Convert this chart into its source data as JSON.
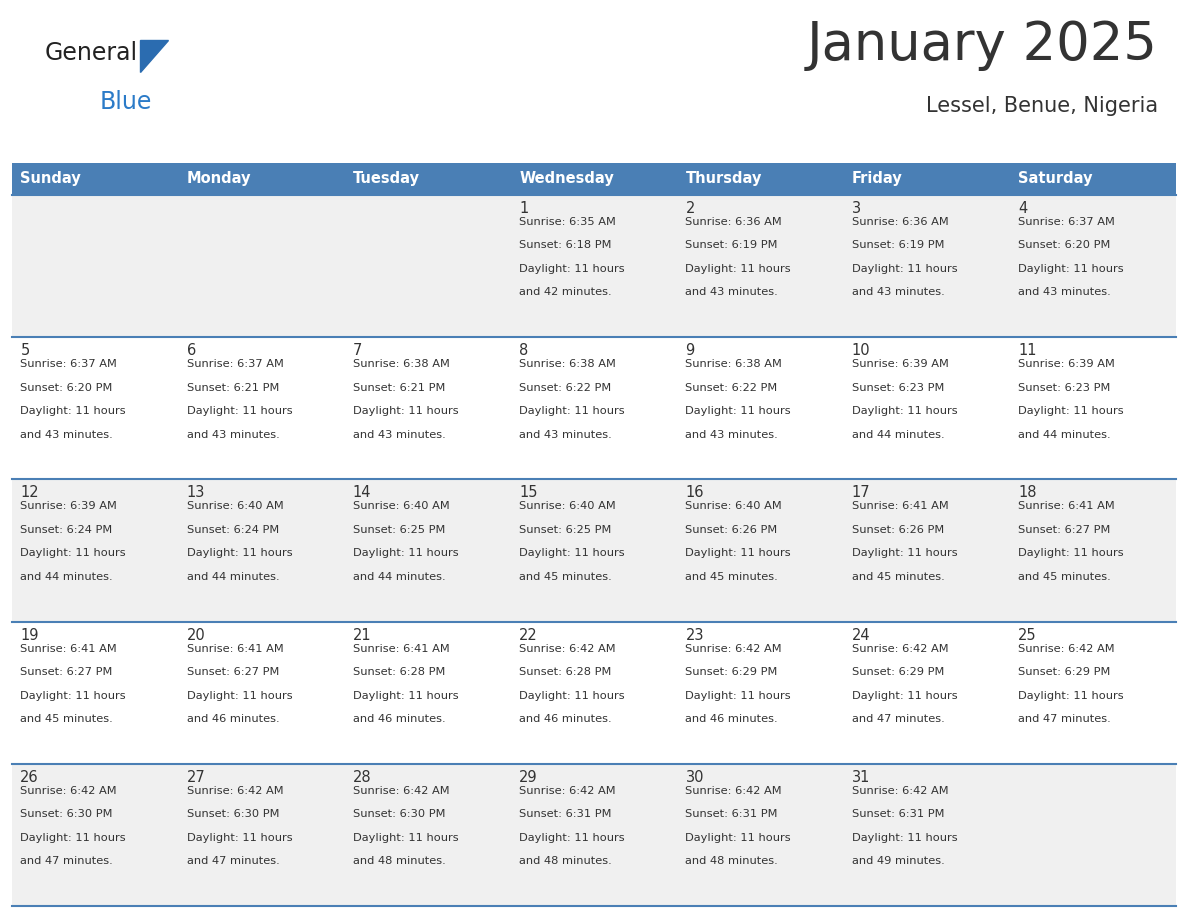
{
  "title": "January 2025",
  "subtitle": "Lessel, Benue, Nigeria",
  "days_of_week": [
    "Sunday",
    "Monday",
    "Tuesday",
    "Wednesday",
    "Thursday",
    "Friday",
    "Saturday"
  ],
  "header_bg": "#4A7FB5",
  "header_text": "#FFFFFF",
  "cell_bg_odd": "#F0F0F0",
  "cell_bg_even": "#FFFFFF",
  "row_line_color": "#4A7FB5",
  "text_color": "#333333",
  "day_number_color": "#333333",
  "logo_triangle_color": "#2B6CB0",
  "general_color": "#222222",
  "blue_color": "#2B7BC8",
  "logo_text_general": "General",
  "logo_text_blue": "Blue",
  "calendar_data": [
    [
      null,
      null,
      null,
      {
        "day": 1,
        "sunrise": "6:35 AM",
        "sunset": "6:18 PM",
        "daylight_min": "42"
      },
      {
        "day": 2,
        "sunrise": "6:36 AM",
        "sunset": "6:19 PM",
        "daylight_min": "43"
      },
      {
        "day": 3,
        "sunrise": "6:36 AM",
        "sunset": "6:19 PM",
        "daylight_min": "43"
      },
      {
        "day": 4,
        "sunrise": "6:37 AM",
        "sunset": "6:20 PM",
        "daylight_min": "43"
      }
    ],
    [
      {
        "day": 5,
        "sunrise": "6:37 AM",
        "sunset": "6:20 PM",
        "daylight_min": "43"
      },
      {
        "day": 6,
        "sunrise": "6:37 AM",
        "sunset": "6:21 PM",
        "daylight_min": "43"
      },
      {
        "day": 7,
        "sunrise": "6:38 AM",
        "sunset": "6:21 PM",
        "daylight_min": "43"
      },
      {
        "day": 8,
        "sunrise": "6:38 AM",
        "sunset": "6:22 PM",
        "daylight_min": "43"
      },
      {
        "day": 9,
        "sunrise": "6:38 AM",
        "sunset": "6:22 PM",
        "daylight_min": "43"
      },
      {
        "day": 10,
        "sunrise": "6:39 AM",
        "sunset": "6:23 PM",
        "daylight_min": "44"
      },
      {
        "day": 11,
        "sunrise": "6:39 AM",
        "sunset": "6:23 PM",
        "daylight_min": "44"
      }
    ],
    [
      {
        "day": 12,
        "sunrise": "6:39 AM",
        "sunset": "6:24 PM",
        "daylight_min": "44"
      },
      {
        "day": 13,
        "sunrise": "6:40 AM",
        "sunset": "6:24 PM",
        "daylight_min": "44"
      },
      {
        "day": 14,
        "sunrise": "6:40 AM",
        "sunset": "6:25 PM",
        "daylight_min": "44"
      },
      {
        "day": 15,
        "sunrise": "6:40 AM",
        "sunset": "6:25 PM",
        "daylight_min": "45"
      },
      {
        "day": 16,
        "sunrise": "6:40 AM",
        "sunset": "6:26 PM",
        "daylight_min": "45"
      },
      {
        "day": 17,
        "sunrise": "6:41 AM",
        "sunset": "6:26 PM",
        "daylight_min": "45"
      },
      {
        "day": 18,
        "sunrise": "6:41 AM",
        "sunset": "6:27 PM",
        "daylight_min": "45"
      }
    ],
    [
      {
        "day": 19,
        "sunrise": "6:41 AM",
        "sunset": "6:27 PM",
        "daylight_min": "45"
      },
      {
        "day": 20,
        "sunrise": "6:41 AM",
        "sunset": "6:27 PM",
        "daylight_min": "46"
      },
      {
        "day": 21,
        "sunrise": "6:41 AM",
        "sunset": "6:28 PM",
        "daylight_min": "46"
      },
      {
        "day": 22,
        "sunrise": "6:42 AM",
        "sunset": "6:28 PM",
        "daylight_min": "46"
      },
      {
        "day": 23,
        "sunrise": "6:42 AM",
        "sunset": "6:29 PM",
        "daylight_min": "46"
      },
      {
        "day": 24,
        "sunrise": "6:42 AM",
        "sunset": "6:29 PM",
        "daylight_min": "47"
      },
      {
        "day": 25,
        "sunrise": "6:42 AM",
        "sunset": "6:29 PM",
        "daylight_min": "47"
      }
    ],
    [
      {
        "day": 26,
        "sunrise": "6:42 AM",
        "sunset": "6:30 PM",
        "daylight_min": "47"
      },
      {
        "day": 27,
        "sunrise": "6:42 AM",
        "sunset": "6:30 PM",
        "daylight_min": "47"
      },
      {
        "day": 28,
        "sunrise": "6:42 AM",
        "sunset": "6:30 PM",
        "daylight_min": "48"
      },
      {
        "day": 29,
        "sunrise": "6:42 AM",
        "sunset": "6:31 PM",
        "daylight_min": "48"
      },
      {
        "day": 30,
        "sunrise": "6:42 AM",
        "sunset": "6:31 PM",
        "daylight_min": "48"
      },
      {
        "day": 31,
        "sunrise": "6:42 AM",
        "sunset": "6:31 PM",
        "daylight_min": "49"
      },
      null
    ]
  ]
}
